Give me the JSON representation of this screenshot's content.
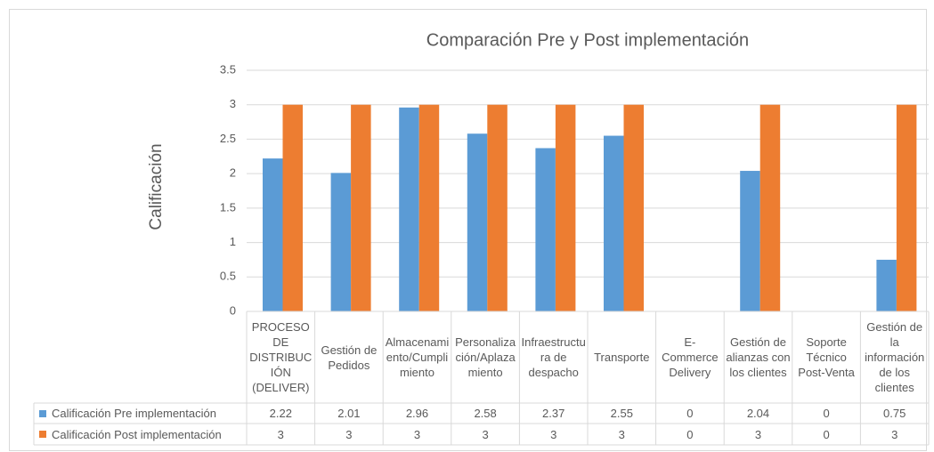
{
  "chart_data": {
    "type": "bar",
    "title": "Comparación Pre y Post implementación",
    "y_label": "Calificación",
    "categories": [
      "PROCESO DE DISTRIBUCIÓN (DELIVER)",
      "Gestión de Pedidos",
      "Almacenamiento/Cumplimiento",
      "Personalización/Aplazamiento",
      "Infraestructura de despacho",
      "Transporte",
      "E-Commerce Delivery",
      "Gestión de alianzas con los clientes",
      "Soporte Técnico Post-Venta",
      "Gestión de la información de los clientes"
    ],
    "series": [
      {
        "name": "Calificación Pre implementación",
        "color": "#5b9bd5",
        "values": [
          2.22,
          2.01,
          2.96,
          2.58,
          2.37,
          2.55,
          0,
          2.04,
          0,
          0.75
        ]
      },
      {
        "name": "Calificación Post implementación",
        "color": "#ed7d31",
        "values": [
          3,
          3,
          3,
          3,
          3,
          3,
          0,
          3,
          0,
          3
        ]
      }
    ],
    "ylim": [
      0,
      3.5
    ],
    "yticks": [
      0,
      0.5,
      1,
      1.5,
      2,
      2.5,
      3,
      3.5
    ],
    "grid": true,
    "data_table": true
  }
}
